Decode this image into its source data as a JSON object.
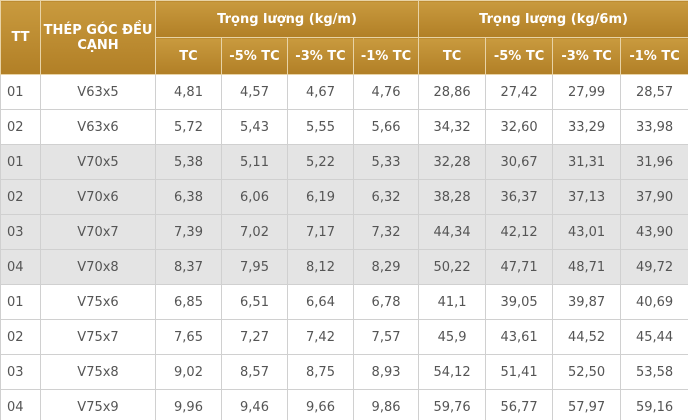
{
  "table": {
    "header": {
      "tt": "TT",
      "name": "THÉP GÓC ĐỀU CẠNH",
      "group1": "Trọng lượng (kg/m)",
      "group2": "Trọng lượng (kg/6m)",
      "sub": [
        "TC",
        "-5% TC",
        "-3% TC",
        "-1% TC",
        "TC",
        "-5% TC",
        "-3% TC",
        "-1% TC"
      ]
    },
    "rows": [
      [
        "01",
        "V63x5",
        "4,81",
        "4,57",
        "4,67",
        "4,76",
        "28,86",
        "27,42",
        "27,99",
        "28,57"
      ],
      [
        "02",
        "V63x6",
        "5,72",
        "5,43",
        "5,55",
        "5,66",
        "34,32",
        "32,60",
        "33,29",
        "33,98"
      ],
      [
        "01",
        "V70x5",
        "5,38",
        "5,11",
        "5,22",
        "5,33",
        "32,28",
        "30,67",
        "31,31",
        "31,96"
      ],
      [
        "02",
        "V70x6",
        "6,38",
        "6,06",
        "6,19",
        "6,32",
        "38,28",
        "36,37",
        "37,13",
        "37,90"
      ],
      [
        "03",
        "V70x7",
        "7,39",
        "7,02",
        "7,17",
        "7,32",
        "44,34",
        "42,12",
        "43,01",
        "43,90"
      ],
      [
        "04",
        "V70x8",
        "8,37",
        "7,95",
        "8,12",
        "8,29",
        "50,22",
        "47,71",
        "48,71",
        "49,72"
      ],
      [
        "01",
        "V75x6",
        "6,85",
        "6,51",
        "6,64",
        "6,78",
        "41,1",
        "39,05",
        "39,87",
        "40,69"
      ],
      [
        "02",
        "V75x7",
        "7,65",
        "7,27",
        "7,42",
        "7,57",
        "45,9",
        "43,61",
        "44,52",
        "45,44"
      ],
      [
        "03",
        "V75x8",
        "9,02",
        "8,57",
        "8,75",
        "8,93",
        "54,12",
        "51,41",
        "52,50",
        "53,58"
      ],
      [
        "04",
        "V75x9",
        "9,96",
        "9,46",
        "9,66",
        "9,86",
        "59,76",
        "56,77",
        "57,97",
        "59,16"
      ]
    ]
  }
}
